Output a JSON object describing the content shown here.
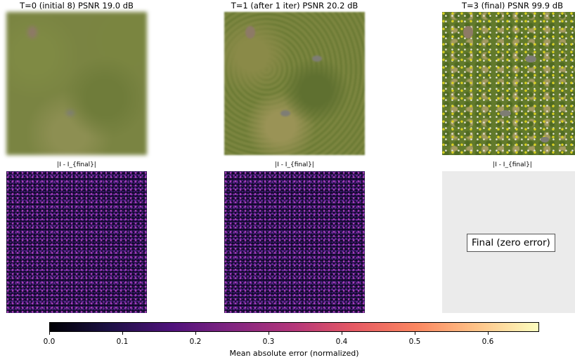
{
  "chart_data": {
    "type": "heatmap",
    "panels": [
      {
        "title": "T=0 (initial 8)  PSNR 19.0 dB",
        "error_title": "|I - I_{final}|",
        "psnr_db": 19.0
      },
      {
        "title": "T=1 (after 1 iter)  PSNR 20.2 dB",
        "error_title": "|I - I_{final}|",
        "psnr_db": 20.2
      },
      {
        "title": "T=3 (final)  PSNR 99.9 dB",
        "error_title": "|I - I_{final}|",
        "psnr_db": 99.9,
        "error_note": "Final (zero error)"
      }
    ],
    "colorbar": {
      "label": "Mean absolute error (normalized)",
      "colormap": "magma",
      "range": [
        0.0,
        0.67
      ],
      "ticks": [
        "0.0",
        "0.1",
        "0.2",
        "0.3",
        "0.4",
        "0.5",
        "0.6"
      ],
      "tick_values": [
        0.0,
        0.1,
        0.2,
        0.3,
        0.4,
        0.5,
        0.6
      ]
    }
  }
}
